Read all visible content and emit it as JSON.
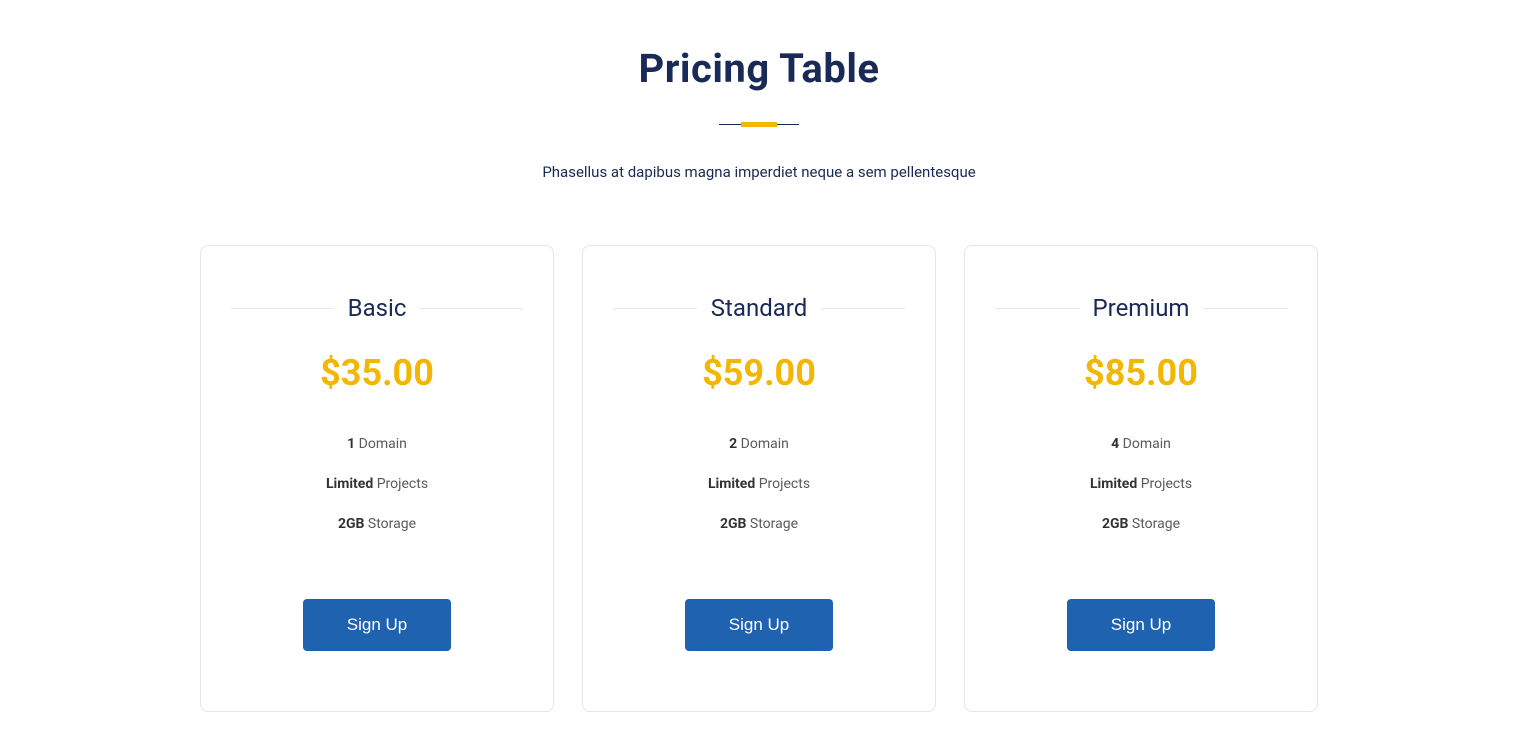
{
  "header": {
    "title": "Pricing Table",
    "subtitle": "Phasellus at dapibus magna imperdiet neque a sem pellentesque"
  },
  "colors": {
    "title": "#1a2a56",
    "accent": "#f2b705",
    "button_bg": "#1e62b0",
    "button_text": "#ffffff",
    "card_border": "#e3e6ea",
    "body_text": "#5a5a5a"
  },
  "plans": [
    {
      "name": "Basic",
      "price": "$35.00",
      "features": [
        {
          "bold": "1",
          "rest": " Domain"
        },
        {
          "bold": "Limited",
          "rest": " Projects"
        },
        {
          "bold": "2GB",
          "rest": " Storage"
        }
      ],
      "cta": "Sign Up"
    },
    {
      "name": "Standard",
      "price": "$59.00",
      "features": [
        {
          "bold": "2",
          "rest": " Domain"
        },
        {
          "bold": "Limited",
          "rest": " Projects"
        },
        {
          "bold": "2GB",
          "rest": " Storage"
        }
      ],
      "cta": "Sign Up"
    },
    {
      "name": "Premium",
      "price": "$85.00",
      "features": [
        {
          "bold": "4",
          "rest": " Domain"
        },
        {
          "bold": "Limited",
          "rest": " Projects"
        },
        {
          "bold": "2GB",
          "rest": " Storage"
        }
      ],
      "cta": "Sign Up"
    }
  ]
}
